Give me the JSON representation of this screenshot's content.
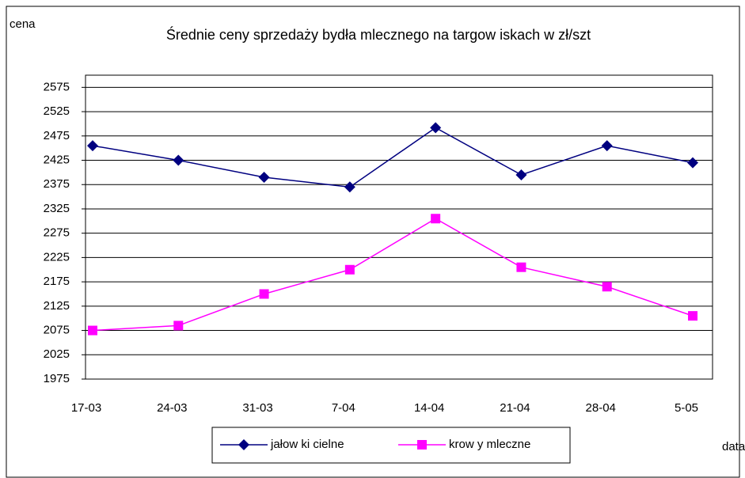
{
  "chart_data": {
    "type": "line",
    "title": "Średnie ceny sprzedaży bydła mlecznego na targow iskach w  zł/szt",
    "y_label": "cena",
    "x_label": "data",
    "categories": [
      "17-03",
      "24-03",
      "31-03",
      "7-04",
      "14-04",
      "21-04",
      "28-04",
      "5-05"
    ],
    "series": [
      {
        "name": "jałow ki cielne",
        "color": "#000080",
        "marker": "diamond",
        "values": [
          2455,
          2425,
          2390,
          2370,
          2492,
          2395,
          2455,
          2420
        ]
      },
      {
        "name": "krow y mleczne",
        "color": "#ff00ff",
        "marker": "square",
        "values": [
          2075,
          2085,
          2150,
          2200,
          2305,
          2205,
          2165,
          2105
        ]
      }
    ],
    "ylim": [
      1975,
      2600
    ],
    "yticks": [
      1975,
      2025,
      2075,
      2125,
      2175,
      2225,
      2275,
      2325,
      2375,
      2425,
      2475,
      2525,
      2575
    ],
    "grid": true,
    "legend": "bottom"
  }
}
